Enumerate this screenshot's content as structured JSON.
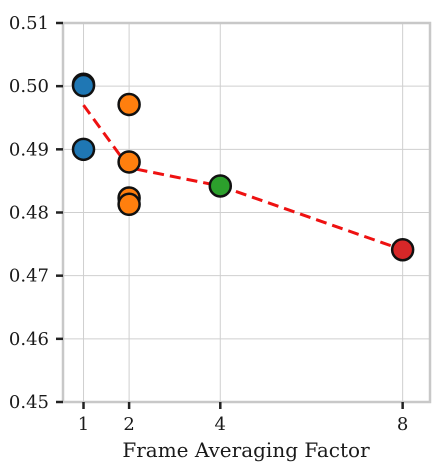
{
  "chart_data": {
    "type": "scatter",
    "title": "",
    "xlabel": "Frame Averaging Factor",
    "ylabel": "",
    "xlim": [
      0.55,
      8.6
    ],
    "ylim": [
      0.45,
      0.51
    ],
    "xticks": [
      1,
      2,
      4,
      8
    ],
    "xtick_labels": [
      "1",
      "2",
      "4",
      "8"
    ],
    "yticks": [
      0.45,
      0.46,
      0.47,
      0.48,
      0.49,
      0.5,
      0.51
    ],
    "ytick_labels": [
      "0.45",
      "0.46",
      "0.47",
      "0.48",
      "0.49",
      "0.50",
      "0.51"
    ],
    "grid": true,
    "series": [
      {
        "color": "#1f77b4",
        "points": [
          [
            1,
            0.5003
          ],
          [
            1,
            0.5001
          ],
          [
            1,
            0.49
          ]
        ]
      },
      {
        "color": "#ff7f0e",
        "points": [
          [
            2,
            0.4971
          ],
          [
            2,
            0.488
          ],
          [
            2,
            0.4823
          ],
          [
            2,
            0.4813
          ]
        ]
      },
      {
        "color": "#2ca02c",
        "points": [
          [
            4,
            0.4842
          ]
        ]
      },
      {
        "color": "#d62728",
        "points": [
          [
            8,
            0.4741
          ]
        ]
      }
    ],
    "trend_line": {
      "color": "#ee1111",
      "style": "dashed",
      "points": [
        [
          1,
          0.497
        ],
        [
          2,
          0.4871
        ],
        [
          4,
          0.4842
        ],
        [
          8,
          0.4741
        ]
      ]
    }
  }
}
